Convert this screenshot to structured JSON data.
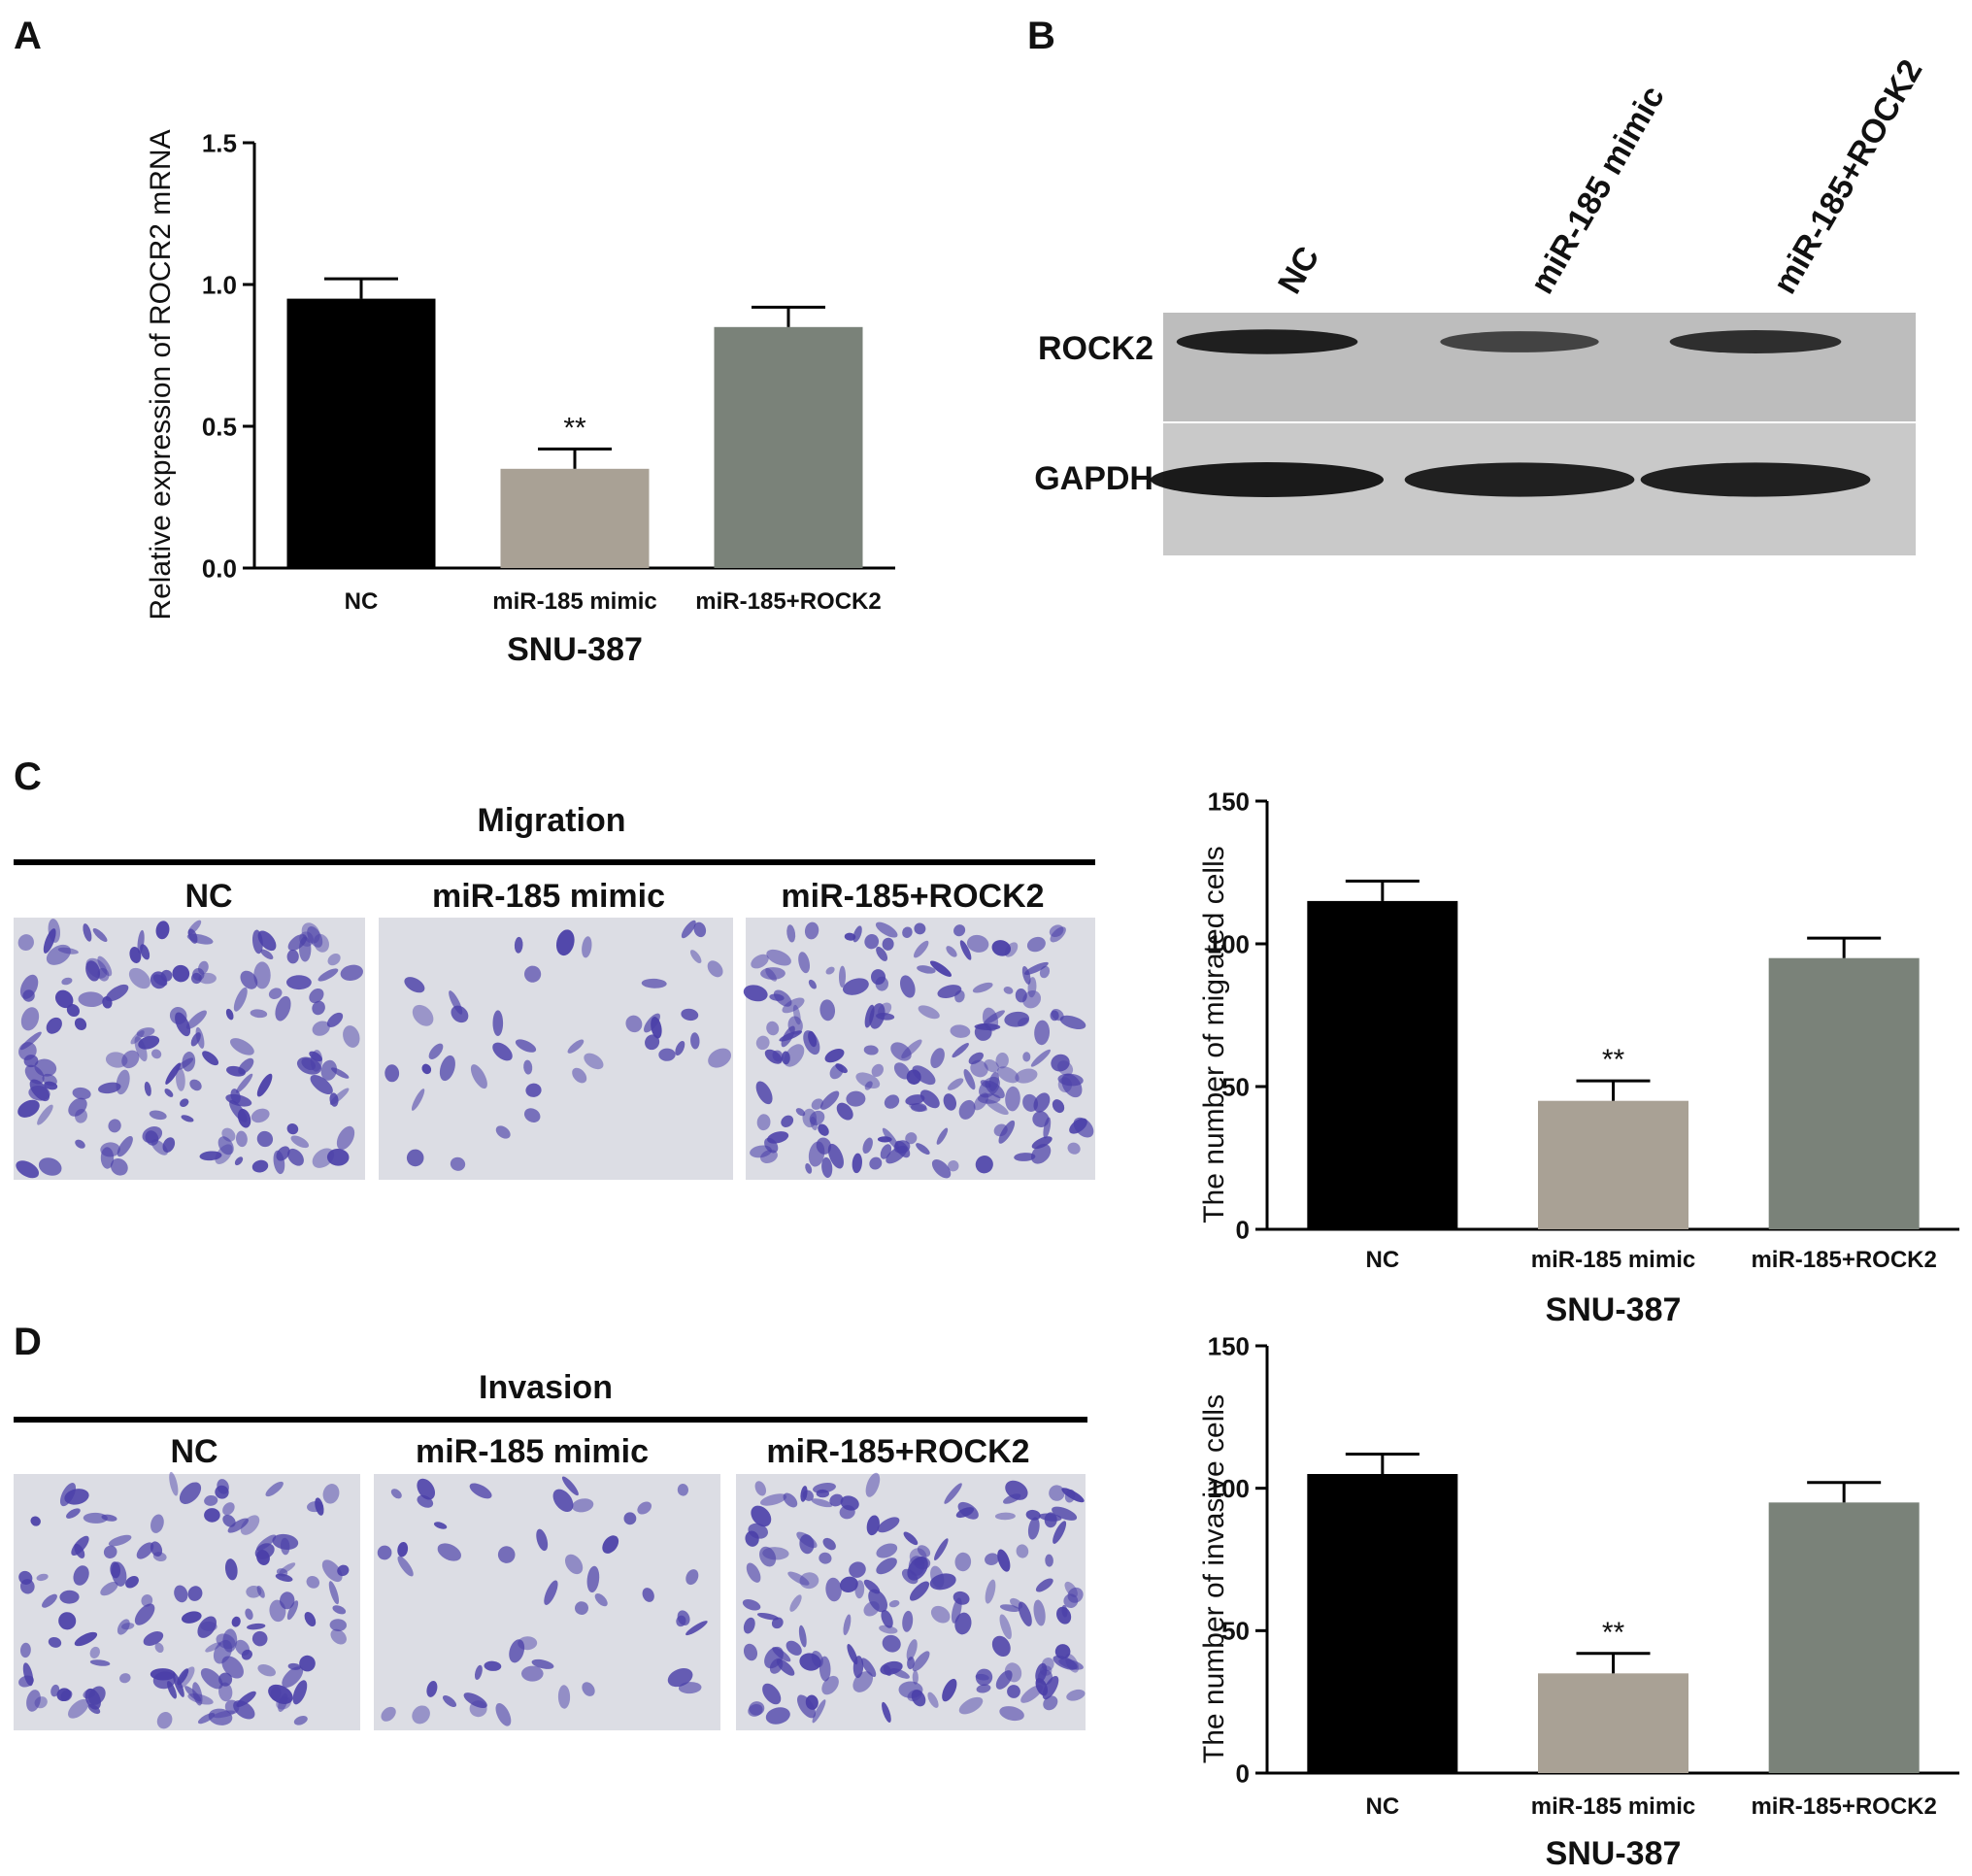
{
  "panels": {
    "A": {
      "letter": "A"
    },
    "B": {
      "letter": "B",
      "lanes": [
        "NC",
        "miR-185 mimic",
        "miR-185+ROCK2"
      ],
      "rows": [
        "ROCK2",
        "GAPDH"
      ],
      "band_intensity": {
        "ROCK2": [
          0.95,
          0.6,
          0.8
        ],
        "GAPDH": [
          1.0,
          0.95,
          0.95
        ]
      }
    },
    "C": {
      "letter": "C",
      "header": "Migration",
      "columns": [
        "NC",
        "miR-185 mimic",
        "miR-185+ROCK2"
      ]
    },
    "D": {
      "letter": "D",
      "header": "Invasion",
      "columns": [
        "NC",
        "miR-185 mimic",
        "miR-185+ROCK2"
      ]
    }
  },
  "colors": {
    "NC": "#000000",
    "miR-185 mimic": "#a9a195",
    "miR-185+ROCK2": "#7a8279",
    "stain": "#4a3fa8",
    "field": "#dcdde4"
  },
  "chart_data": [
    {
      "id": "A",
      "type": "bar",
      "categories": [
        "NC",
        "miR-185 mimic",
        "miR-185+ROCK2"
      ],
      "values": [
        0.95,
        0.35,
        0.85
      ],
      "errors": [
        0.07,
        0.07,
        0.07
      ],
      "significance": [
        "",
        "**",
        ""
      ],
      "title": "",
      "xlabel": "SNU-387",
      "ylabel": "Relative expression of ROCR2 mRNA",
      "ylim": [
        0,
        1.5
      ],
      "yticks": [
        "0.0",
        "0.5",
        "1.0",
        "1.5"
      ],
      "grid": false
    },
    {
      "id": "C",
      "type": "bar",
      "categories": [
        "NC",
        "miR-185 mimic",
        "miR-185+ROCK2"
      ],
      "values": [
        115,
        45,
        95
      ],
      "errors": [
        7,
        7,
        7
      ],
      "significance": [
        "",
        "**",
        ""
      ],
      "title": "",
      "xlabel": "SNU-387",
      "ylabel": "The number of migrated cells",
      "ylim": [
        0,
        150
      ],
      "yticks": [
        "0",
        "50",
        "100",
        "150"
      ],
      "grid": false
    },
    {
      "id": "D",
      "type": "bar",
      "categories": [
        "NC",
        "miR-185 mimic",
        "miR-185+ROCK2"
      ],
      "values": [
        105,
        35,
        95
      ],
      "errors": [
        7,
        7,
        7
      ],
      "significance": [
        "",
        "**",
        ""
      ],
      "title": "",
      "xlabel": "SNU-387",
      "ylabel": "The number of invasive cells",
      "ylim": [
        0,
        150
      ],
      "yticks": [
        "0",
        "50",
        "100",
        "150"
      ],
      "grid": false
    }
  ]
}
